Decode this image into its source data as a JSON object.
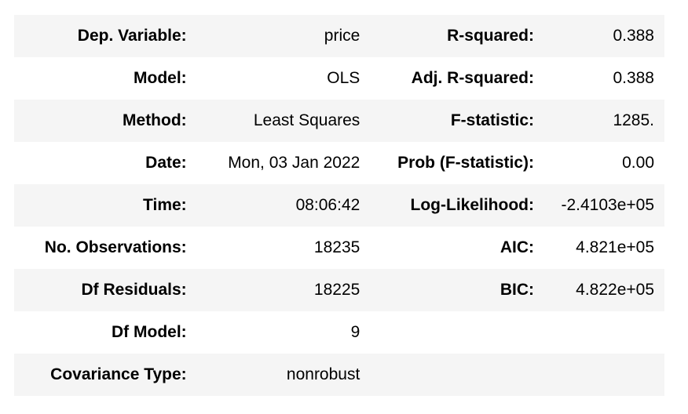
{
  "summary": {
    "rows": [
      {
        "left_label": "Dep. Variable:",
        "left_value": "price",
        "right_label": "R-squared:",
        "right_value": "0.388"
      },
      {
        "left_label": "Model:",
        "left_value": "OLS",
        "right_label": "Adj. R-squared:",
        "right_value": "0.388"
      },
      {
        "left_label": "Method:",
        "left_value": "Least Squares",
        "right_label": "F-statistic:",
        "right_value": "1285."
      },
      {
        "left_label": "Date:",
        "left_value": "Mon, 03 Jan 2022",
        "right_label": "Prob (F-statistic):",
        "right_value": "0.00"
      },
      {
        "left_label": "Time:",
        "left_value": "08:06:42",
        "right_label": "Log-Likelihood:",
        "right_value": "-2.4103e+05"
      },
      {
        "left_label": "No. Observations:",
        "left_value": "18235",
        "right_label": "AIC:",
        "right_value": "4.821e+05"
      },
      {
        "left_label": "Df Residuals:",
        "left_value": "18225",
        "right_label": "BIC:",
        "right_value": "4.822e+05"
      },
      {
        "left_label": "Df Model:",
        "left_value": "9",
        "right_label": "",
        "right_value": ""
      },
      {
        "left_label": "Covariance Type:",
        "left_value": "nonrobust",
        "right_label": "",
        "right_value": ""
      }
    ]
  }
}
